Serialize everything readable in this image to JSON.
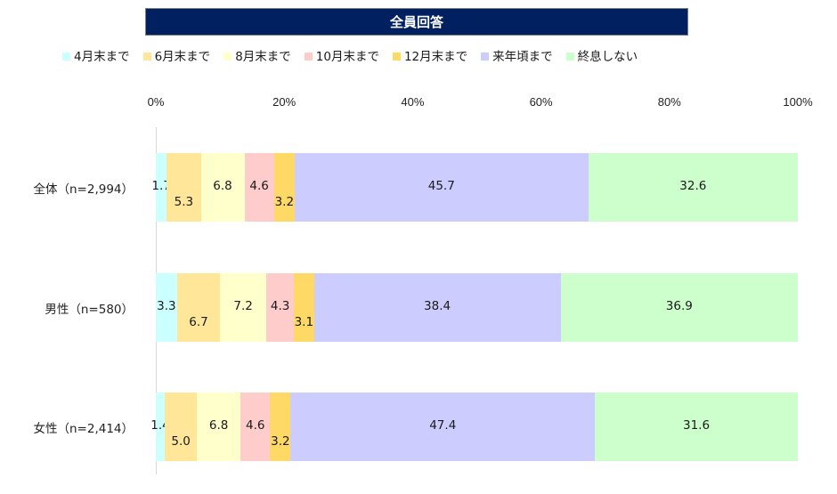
{
  "title": "全員回答",
  "legend": [
    {
      "label": "4月末まで",
      "color": "#ccffff"
    },
    {
      "label": "6月末まで",
      "color": "#ffe699"
    },
    {
      "label": "8月末まで",
      "color": "#ffffcc"
    },
    {
      "label": "10月末まで",
      "color": "#ffcccc"
    },
    {
      "label": "12月末まで",
      "color": "#ffd966"
    },
    {
      "label": "来年頃まで",
      "color": "#ccccff"
    },
    {
      "label": "終息しない",
      "color": "#ccffcc"
    }
  ],
  "axis": {
    "ticks": [
      "0%",
      "20%",
      "40%",
      "60%",
      "80%",
      "100%"
    ]
  },
  "rows": [
    {
      "label": "全体（n=2,994）",
      "values": [
        "1.7",
        "5.3",
        "6.8",
        "4.6",
        "3.2",
        "45.7",
        "32.6"
      ]
    },
    {
      "label": "男性（n=580）",
      "values": [
        "3.3",
        "6.7",
        "7.2",
        "4.3",
        "3.1",
        "38.4",
        "36.9"
      ]
    },
    {
      "label": "女性（n=2,414）",
      "values": [
        "1.4",
        "5.0",
        "6.8",
        "4.6",
        "3.2",
        "47.4",
        "31.6"
      ]
    }
  ],
  "chart_data": {
    "type": "bar",
    "orientation": "horizontal",
    "stacked": true,
    "percent_stacked": true,
    "title": "全員回答",
    "categories": [
      "全体（n=2,994）",
      "男性（n=580）",
      "女性（n=2,414）"
    ],
    "series": [
      {
        "name": "4月末まで",
        "color": "#ccffff",
        "values": [
          1.7,
          3.3,
          1.4
        ]
      },
      {
        "name": "6月末まで",
        "color": "#ffe699",
        "values": [
          5.3,
          6.7,
          5.0
        ]
      },
      {
        "name": "8月末まで",
        "color": "#ffffcc",
        "values": [
          6.8,
          7.2,
          6.8
        ]
      },
      {
        "name": "10月末まで",
        "color": "#ffcccc",
        "values": [
          4.6,
          4.3,
          4.6
        ]
      },
      {
        "name": "12月末まで",
        "color": "#ffd966",
        "values": [
          3.2,
          3.1,
          3.2
        ]
      },
      {
        "name": "来年頃まで",
        "color": "#ccccff",
        "values": [
          45.7,
          38.4,
          47.4
        ]
      },
      {
        "name": "終息しない",
        "color": "#ccffcc",
        "values": [
          32.6,
          36.9,
          31.6
        ]
      }
    ],
    "xlabel": "",
    "ylabel": "",
    "xlim": [
      0,
      100
    ],
    "xticks": [
      "0%",
      "20%",
      "40%",
      "60%",
      "80%",
      "100%"
    ],
    "legend_position": "top",
    "grid": false,
    "data_labels": true
  }
}
